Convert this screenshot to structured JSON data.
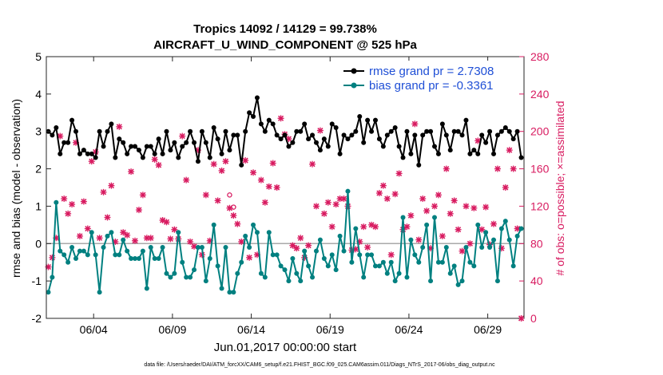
{
  "chart_data": {
    "type": "line",
    "title_line1": "Tropics 14092 / 14129 = 99.738%",
    "title_line2": "AIRCRAFT_U_WIND_COMPONENT @ 525 hPa",
    "xlabel": "Jun.01,2017 00:00:00 start",
    "ylabel_left": "rmse and bias (model - observation)",
    "ylabel_right": "# of obs: o=possible; ×=assimilated",
    "footer": "data file: /Users/raeder/DAI/ATM_forcXX/CAM6_setup/f.e21.FHIST_BGC.f09_025.CAM6assim.011/Diags_NTrS_2017-06/obs_diag_output.nc",
    "x_range": [
      0.5,
      30.8
    ],
    "x_ticks": [
      3.5,
      8.5,
      13.5,
      18.5,
      23.5,
      28.5
    ],
    "x_tick_labels": [
      "06/04",
      "06/09",
      "06/14",
      "06/19",
      "06/24",
      "06/29"
    ],
    "y_left_range": [
      -2,
      5
    ],
    "y_left_ticks": [
      "-2",
      "-1",
      "0",
      "1",
      "2",
      "3",
      "4",
      "5"
    ],
    "y_right_range": [
      0,
      280
    ],
    "y_right_ticks": [
      "0",
      "40",
      "80",
      "120",
      "160",
      "200",
      "240",
      "280"
    ],
    "zero_line": 0,
    "colors": {
      "rmse": "#000000",
      "bias": "#008080",
      "obs": "#d81b60",
      "zero": "#aaaaaa"
    },
    "legend": [
      {
        "name": "rmse grand pr = 2.7308",
        "color": "#000000"
      },
      {
        "name": "bias grand pr = -0.3361",
        "color": "#008080"
      }
    ],
    "series": [
      {
        "name": "rmse",
        "x": [
          0.625,
          0.875,
          1.125,
          1.375,
          1.625,
          1.875,
          2.125,
          2.375,
          2.625,
          2.875,
          3.125,
          3.375,
          3.625,
          3.875,
          4.125,
          4.375,
          4.625,
          4.875,
          5.125,
          5.375,
          5.625,
          5.875,
          6.125,
          6.375,
          6.625,
          6.875,
          7.125,
          7.375,
          7.625,
          7.875,
          8.125,
          8.375,
          8.625,
          8.875,
          9.125,
          9.375,
          9.625,
          9.875,
          10.125,
          10.375,
          10.625,
          10.875,
          11.125,
          11.375,
          11.625,
          11.875,
          12.125,
          12.375,
          12.625,
          12.875,
          13.125,
          13.375,
          13.625,
          13.875,
          14.125,
          14.375,
          14.625,
          14.875,
          15.125,
          15.375,
          15.625,
          15.875,
          16.125,
          16.375,
          16.625,
          16.875,
          17.125,
          17.375,
          17.625,
          17.875,
          18.125,
          18.375,
          18.625,
          18.875,
          19.125,
          19.375,
          19.625,
          19.875,
          20.125,
          20.375,
          20.625,
          20.875,
          21.125,
          21.375,
          21.625,
          21.875,
          22.125,
          22.375,
          22.625,
          22.875,
          23.125,
          23.375,
          23.625,
          23.875,
          24.125,
          24.375,
          24.625,
          24.875,
          25.125,
          25.375,
          25.625,
          25.875,
          26.125,
          26.375,
          26.625,
          26.875,
          27.125,
          27.375,
          27.625,
          27.875,
          28.125,
          28.375,
          28.625,
          28.875,
          29.125,
          29.375,
          29.625,
          29.875,
          30.125,
          30.375,
          30.625
        ],
        "values": [
          3.0,
          2.9,
          3.1,
          2.4,
          2.7,
          2.7,
          3.3,
          3.0,
          2.4,
          2.5,
          2.4,
          2.4,
          2.3,
          3.0,
          2.6,
          3.0,
          3.2,
          2.3,
          2.8,
          2.7,
          2.4,
          2.6,
          2.6,
          2.5,
          2.3,
          2.6,
          2.6,
          2.4,
          2.8,
          2.4,
          3.0,
          2.5,
          2.7,
          2.3,
          2.6,
          2.7,
          3.0,
          2.7,
          2.2,
          3.0,
          2.7,
          2.3,
          3.1,
          2.8,
          2.4,
          3.0,
          2.5,
          2.9,
          2.9,
          2.1,
          3.0,
          3.5,
          3.4,
          3.9,
          3.2,
          3.0,
          3.3,
          3.2,
          2.9,
          2.8,
          2.9,
          2.6,
          2.7,
          3.0,
          3.0,
          3.2,
          2.8,
          2.9,
          2.7,
          2.5,
          2.8,
          2.6,
          3.2,
          3.1,
          2.4,
          2.9,
          2.8,
          2.9,
          3.0,
          3.4,
          2.7,
          3.3,
          3.0,
          3.3,
          2.8,
          2.6,
          2.9,
          3.0,
          3.1,
          2.6,
          2.3,
          3.0,
          2.4,
          2.9,
          2.1,
          2.9,
          3.0,
          3.0,
          2.6,
          2.4,
          3.2,
          2.9,
          2.5,
          3.0,
          3.0,
          2.9,
          3.3,
          2.4,
          2.5,
          2.4,
          2.9,
          2.7,
          3.0,
          2.4,
          2.9,
          3.0,
          3.1,
          3.0,
          2.8,
          3.0,
          2.3
        ]
      },
      {
        "name": "bias",
        "x": [
          0.625,
          0.875,
          1.125,
          1.375,
          1.625,
          1.875,
          2.125,
          2.375,
          2.625,
          2.875,
          3.125,
          3.375,
          3.625,
          3.875,
          4.125,
          4.375,
          4.625,
          4.875,
          5.125,
          5.375,
          5.625,
          5.875,
          6.125,
          6.375,
          6.625,
          6.875,
          7.125,
          7.375,
          7.625,
          7.875,
          8.125,
          8.375,
          8.625,
          8.875,
          9.125,
          9.375,
          9.625,
          9.875,
          10.125,
          10.375,
          10.625,
          10.875,
          11.125,
          11.375,
          11.625,
          11.875,
          12.125,
          12.375,
          12.625,
          12.875,
          13.125,
          13.375,
          13.625,
          13.875,
          14.125,
          14.375,
          14.625,
          14.875,
          15.125,
          15.375,
          15.625,
          15.875,
          16.125,
          16.375,
          16.625,
          16.875,
          17.125,
          17.375,
          17.625,
          17.875,
          18.125,
          18.375,
          18.625,
          18.875,
          19.125,
          19.375,
          19.625,
          19.875,
          20.125,
          20.375,
          20.625,
          20.875,
          21.125,
          21.375,
          21.625,
          21.875,
          22.125,
          22.375,
          22.625,
          22.875,
          23.125,
          23.375,
          23.625,
          23.875,
          24.125,
          24.375,
          24.625,
          24.875,
          25.125,
          25.375,
          25.625,
          25.875,
          26.125,
          26.375,
          26.625,
          26.875,
          27.125,
          27.375,
          27.625,
          27.875,
          28.125,
          28.375,
          28.625,
          28.875,
          29.125,
          29.375,
          29.625,
          29.875,
          30.125,
          30.375,
          30.625
        ],
        "values": [
          -1.3,
          -0.9,
          1.1,
          -0.2,
          -0.3,
          -0.5,
          -0.1,
          -0.4,
          -0.2,
          -0.2,
          -0.3,
          0.3,
          -0.3,
          -1.3,
          -0.1,
          0.2,
          0.3,
          -0.3,
          -0.3,
          0.1,
          -0.2,
          -0.4,
          -0.4,
          -0.4,
          -0.2,
          -1.2,
          -0.1,
          -0.4,
          -0.4,
          -0.1,
          -0.8,
          -0.9,
          -0.8,
          0.3,
          -0.5,
          -0.9,
          -0.9,
          -0.7,
          -0.1,
          -0.1,
          -1.0,
          -0.4,
          0.5,
          -0.6,
          -1.2,
          -0.1,
          -1.3,
          -1.3,
          -0.8,
          -0.5,
          0.2,
          -0.1,
          0.5,
          0.3,
          -0.8,
          -0.9,
          0.3,
          -0.3,
          -0.3,
          -0.6,
          -0.7,
          -1.0,
          -0.4,
          -0.8,
          -1.0,
          -0.2,
          -0.6,
          -0.9,
          -0.2,
          0.1,
          -0.4,
          -0.6,
          -0.3,
          -0.7,
          0.2,
          -0.2,
          1.4,
          -0.5,
          0.4,
          -0.3,
          -0.9,
          -0.3,
          -0.3,
          -0.6,
          -0.6,
          -0.5,
          -0.8,
          -0.5,
          -1.0,
          -0.8,
          0.7,
          -0.9,
          0.1,
          -0.3,
          -0.5,
          -0.1,
          0.5,
          -1.0,
          0.7,
          -0.5,
          -0.5,
          -0.1,
          -0.8,
          -0.6,
          -1.1,
          -1.0,
          -0.1,
          -0.5,
          -0.6,
          0.5,
          -0.1,
          0.3,
          -0.1,
          0.1,
          -1.0,
          0.4,
          0.6,
          0.1,
          -0.6,
          0.2,
          0.4
        ]
      },
      {
        "name": "obs_assimilated",
        "x": [
          0.625,
          0.875,
          1.125,
          1.375,
          1.625,
          1.875,
          2.125,
          2.375,
          2.625,
          2.875,
          3.125,
          3.375,
          3.625,
          3.875,
          4.125,
          4.375,
          4.625,
          4.875,
          5.125,
          5.375,
          5.625,
          5.875,
          6.125,
          6.375,
          6.625,
          6.875,
          7.125,
          7.375,
          7.625,
          7.875,
          8.125,
          8.375,
          8.625,
          8.875,
          9.125,
          9.375,
          9.625,
          9.875,
          10.125,
          10.375,
          10.625,
          10.875,
          11.125,
          11.375,
          11.625,
          11.875,
          12.125,
          12.375,
          12.625,
          12.875,
          13.125,
          13.375,
          13.625,
          13.875,
          14.125,
          14.375,
          14.625,
          14.875,
          15.125,
          15.375,
          15.625,
          15.875,
          16.125,
          16.375,
          16.625,
          16.875,
          17.125,
          17.375,
          17.625,
          17.875,
          18.125,
          18.375,
          18.625,
          18.875,
          19.125,
          19.375,
          19.625,
          19.875,
          20.125,
          20.375,
          20.625,
          20.875,
          21.125,
          21.375,
          21.625,
          21.875,
          22.125,
          22.375,
          22.625,
          22.875,
          23.125,
          23.375,
          23.625,
          23.875,
          24.125,
          24.375,
          24.625,
          24.875,
          25.125,
          25.375,
          25.625,
          25.875,
          26.125,
          26.375,
          26.625,
          26.875,
          27.125,
          27.375,
          27.625,
          27.875,
          28.125,
          28.375,
          28.625,
          28.875,
          29.125,
          29.375,
          29.625,
          29.875,
          30.125,
          30.375,
          30.625
        ],
        "values": [
          55,
          65,
          86,
          195,
          128,
          112,
          122,
          188,
          88,
          125,
          96,
          168,
          178,
          86,
          135,
          108,
          142,
          82,
          205,
          92,
          89,
          157,
          83,
          116,
          132,
          86,
          86,
          170,
          164,
          105,
          103,
          85,
          95,
          85,
          195,
          148,
          82,
          77,
          180,
          68,
          132,
          83,
          165,
          126,
          158,
          168,
          118,
          110,
          101,
          82,
          169,
          65,
          156,
          68,
          148,
          124,
          141,
          166,
          140,
          214,
          197,
          192,
          78,
          75,
          86,
          65,
          78,
          165,
          120,
          201,
          112,
          124,
          98,
          122,
          128,
          128,
          120,
          73,
          74,
          82,
          98,
          76,
          100,
          98,
          134,
          142,
          128,
          68,
          133,
          155,
          95,
          98,
          110,
          208,
          84,
          128,
          115,
          75,
          120,
          132,
          88,
          160,
          112,
          126,
          95,
          72,
          120,
          80,
          118,
          190,
          95,
          119,
          79,
          101,
          160,
          75,
          140,
          180,
          160,
          96,
          0
        ]
      },
      {
        "name": "obs_possible",
        "x": [
          0.625,
          0.875,
          1.125,
          1.375,
          1.625,
          1.875,
          2.125,
          2.375,
          2.625,
          2.875,
          3.125,
          3.375,
          3.625,
          3.875,
          4.125,
          4.375,
          4.625,
          4.875,
          5.125,
          5.375,
          5.625,
          5.875,
          6.125,
          6.375,
          6.625,
          6.875,
          7.125,
          7.375,
          7.625,
          7.875,
          8.125,
          8.375,
          8.625,
          8.875,
          9.125,
          9.375,
          9.625,
          9.875,
          10.125,
          10.375,
          10.625,
          10.875,
          11.125,
          11.375,
          11.625,
          11.875,
          12.125,
          12.375,
          12.625,
          12.875,
          13.125,
          13.375,
          13.625,
          13.875,
          14.125,
          14.375,
          14.625,
          14.875,
          15.125,
          15.375,
          15.625,
          15.875,
          16.125,
          16.375,
          16.625,
          16.875,
          17.125,
          17.375,
          17.625,
          17.875,
          18.125,
          18.375,
          18.625,
          18.875,
          19.125,
          19.375,
          19.625,
          19.875,
          20.125,
          20.375,
          20.625,
          20.875,
          21.125,
          21.375,
          21.625,
          21.875,
          22.125,
          22.375,
          22.625,
          22.875,
          23.125,
          23.375,
          23.625,
          23.875,
          24.125,
          24.375,
          24.625,
          24.875,
          25.125,
          25.375,
          25.625,
          25.875,
          26.125,
          26.375,
          26.625,
          26.875,
          27.125,
          27.375,
          27.625,
          27.875,
          28.125,
          28.375,
          28.625,
          28.875,
          29.125,
          29.375,
          29.625,
          29.875,
          30.125,
          30.375,
          30.625
        ],
        "values": [
          55,
          65,
          86,
          195,
          128,
          112,
          122,
          188,
          88,
          125,
          96,
          168,
          178,
          86,
          135,
          108,
          142,
          82,
          205,
          92,
          89,
          157,
          83,
          116,
          132,
          86,
          86,
          170,
          164,
          105,
          103,
          85,
          95,
          85,
          195,
          148,
          82,
          77,
          180,
          68,
          132,
          83,
          165,
          126,
          158,
          168,
          132,
          119,
          101,
          82,
          169,
          65,
          156,
          68,
          148,
          124,
          141,
          166,
          140,
          214,
          197,
          192,
          78,
          75,
          86,
          65,
          78,
          165,
          120,
          201,
          112,
          124,
          98,
          122,
          128,
          128,
          120,
          73,
          74,
          82,
          98,
          76,
          100,
          98,
          134,
          142,
          128,
          68,
          133,
          155,
          95,
          98,
          110,
          208,
          84,
          128,
          115,
          75,
          120,
          132,
          88,
          160,
          112,
          126,
          95,
          72,
          120,
          80,
          118,
          190,
          95,
          119,
          79,
          101,
          160,
          75,
          140,
          180,
          160,
          96,
          0
        ]
      }
    ]
  }
}
